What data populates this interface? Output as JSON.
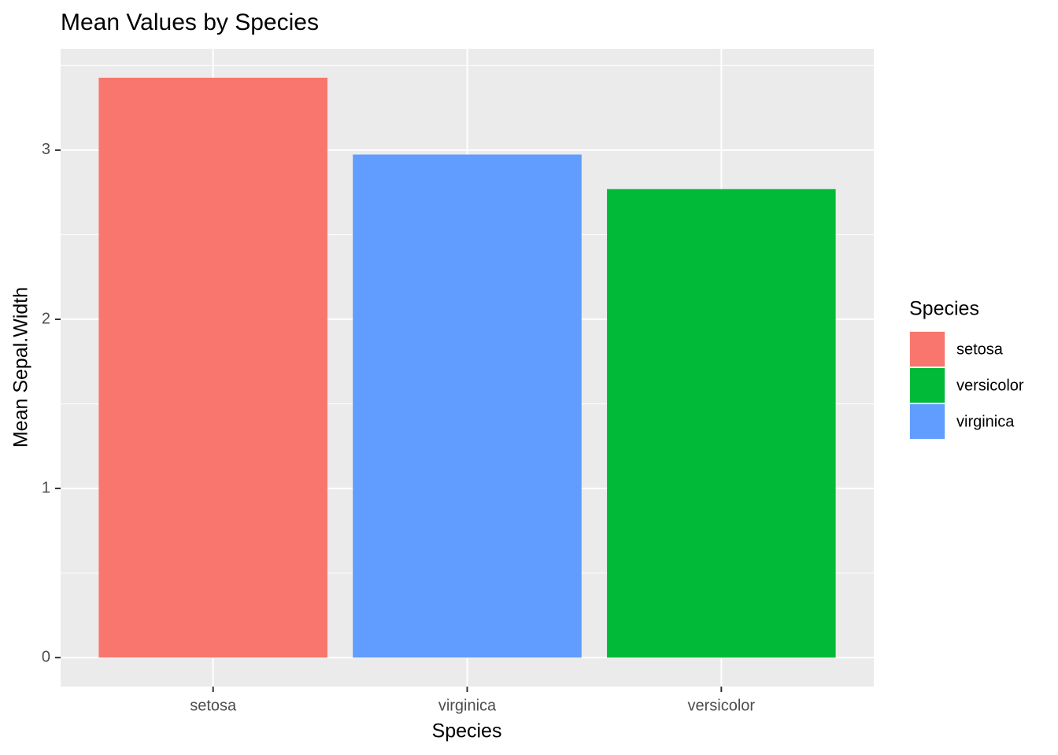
{
  "chart_data": {
    "type": "bar",
    "title": "Mean Values by Species",
    "x_label": "Species",
    "y_label": "Mean Sepal.Width",
    "categories": [
      "setosa",
      "virginica",
      "versicolor"
    ],
    "values": [
      3.428,
      2.974,
      2.77
    ],
    "colors": [
      "#f8766d",
      "#619cff",
      "#00ba38"
    ],
    "ylim": [
      -0.1714,
      3.5994
    ],
    "yticks": [
      0,
      1,
      2,
      3
    ],
    "yminor_ticks": [
      0.5,
      1.5,
      2.5,
      3.5
    ],
    "grid": true,
    "legend": {
      "title": "Species",
      "position": "right",
      "items": [
        {
          "name": "setosa",
          "color": "#f8766d"
        },
        {
          "name": "versicolor",
          "color": "#00ba38"
        },
        {
          "name": "virginica",
          "color": "#619cff"
        }
      ]
    }
  }
}
